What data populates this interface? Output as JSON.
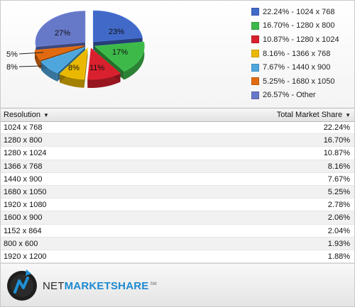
{
  "chart": {
    "legend": [
      {
        "label": "22.24% - 1024 x 768",
        "color": "#4169c8"
      },
      {
        "label": "16.70% - 1280 x 800",
        "color": "#3db94a"
      },
      {
        "label": "10.87% - 1280 x 1024",
        "color": "#d8202e"
      },
      {
        "label": "8.16% - 1366 x 768",
        "color": "#eab800"
      },
      {
        "label": "7.67% - 1440 x 900",
        "color": "#4ea6dd"
      },
      {
        "label": "5.25% - 1680 x 1050",
        "color": "#e06a10"
      },
      {
        "label": "26.57% - Other",
        "color": "#6678c8"
      }
    ],
    "slice_labels": {
      "p23": "23%",
      "p17": "17%",
      "p11": "11%",
      "p8a": "8%",
      "p8b": "8%",
      "p5": "5%",
      "p27": "27%"
    }
  },
  "chart_data": {
    "type": "pie",
    "categories": [
      "1024 x 768",
      "1280 x 800",
      "1280 x 1024",
      "1366 x 768",
      "1440 x 900",
      "1680 x 1050",
      "Other"
    ],
    "values": [
      22.24,
      16.7,
      10.87,
      8.16,
      7.67,
      5.25,
      26.57
    ],
    "colors": [
      "#4169c8",
      "#3db94a",
      "#d8202e",
      "#eab800",
      "#4ea6dd",
      "#e06a10",
      "#6678c8"
    ]
  },
  "table": {
    "headers": {
      "resolution": "Resolution",
      "share": "Total Market Share"
    },
    "rows": [
      {
        "resolution": "1024 x 768",
        "share": "22.24%"
      },
      {
        "resolution": "1280 x 800",
        "share": "16.70%"
      },
      {
        "resolution": "1280 x 1024",
        "share": "10.87%"
      },
      {
        "resolution": "1366 x 768",
        "share": "8.16%"
      },
      {
        "resolution": "1440 x 900",
        "share": "7.67%"
      },
      {
        "resolution": "1680 x 1050",
        "share": "5.25%"
      },
      {
        "resolution": "1920 x 1080",
        "share": "2.78%"
      },
      {
        "resolution": "1600 x 900",
        "share": "2.06%"
      },
      {
        "resolution": "1152 x 864",
        "share": "2.04%"
      },
      {
        "resolution": "800 x 600",
        "share": "1.93%"
      },
      {
        "resolution": "1920 x 1200",
        "share": "1.88%"
      }
    ]
  },
  "footer": {
    "brand_net": "NET",
    "brand_market": "MARKETSHARE",
    "brand_sup": "SM",
    "logo_icon": "netmarketshare-logo"
  }
}
